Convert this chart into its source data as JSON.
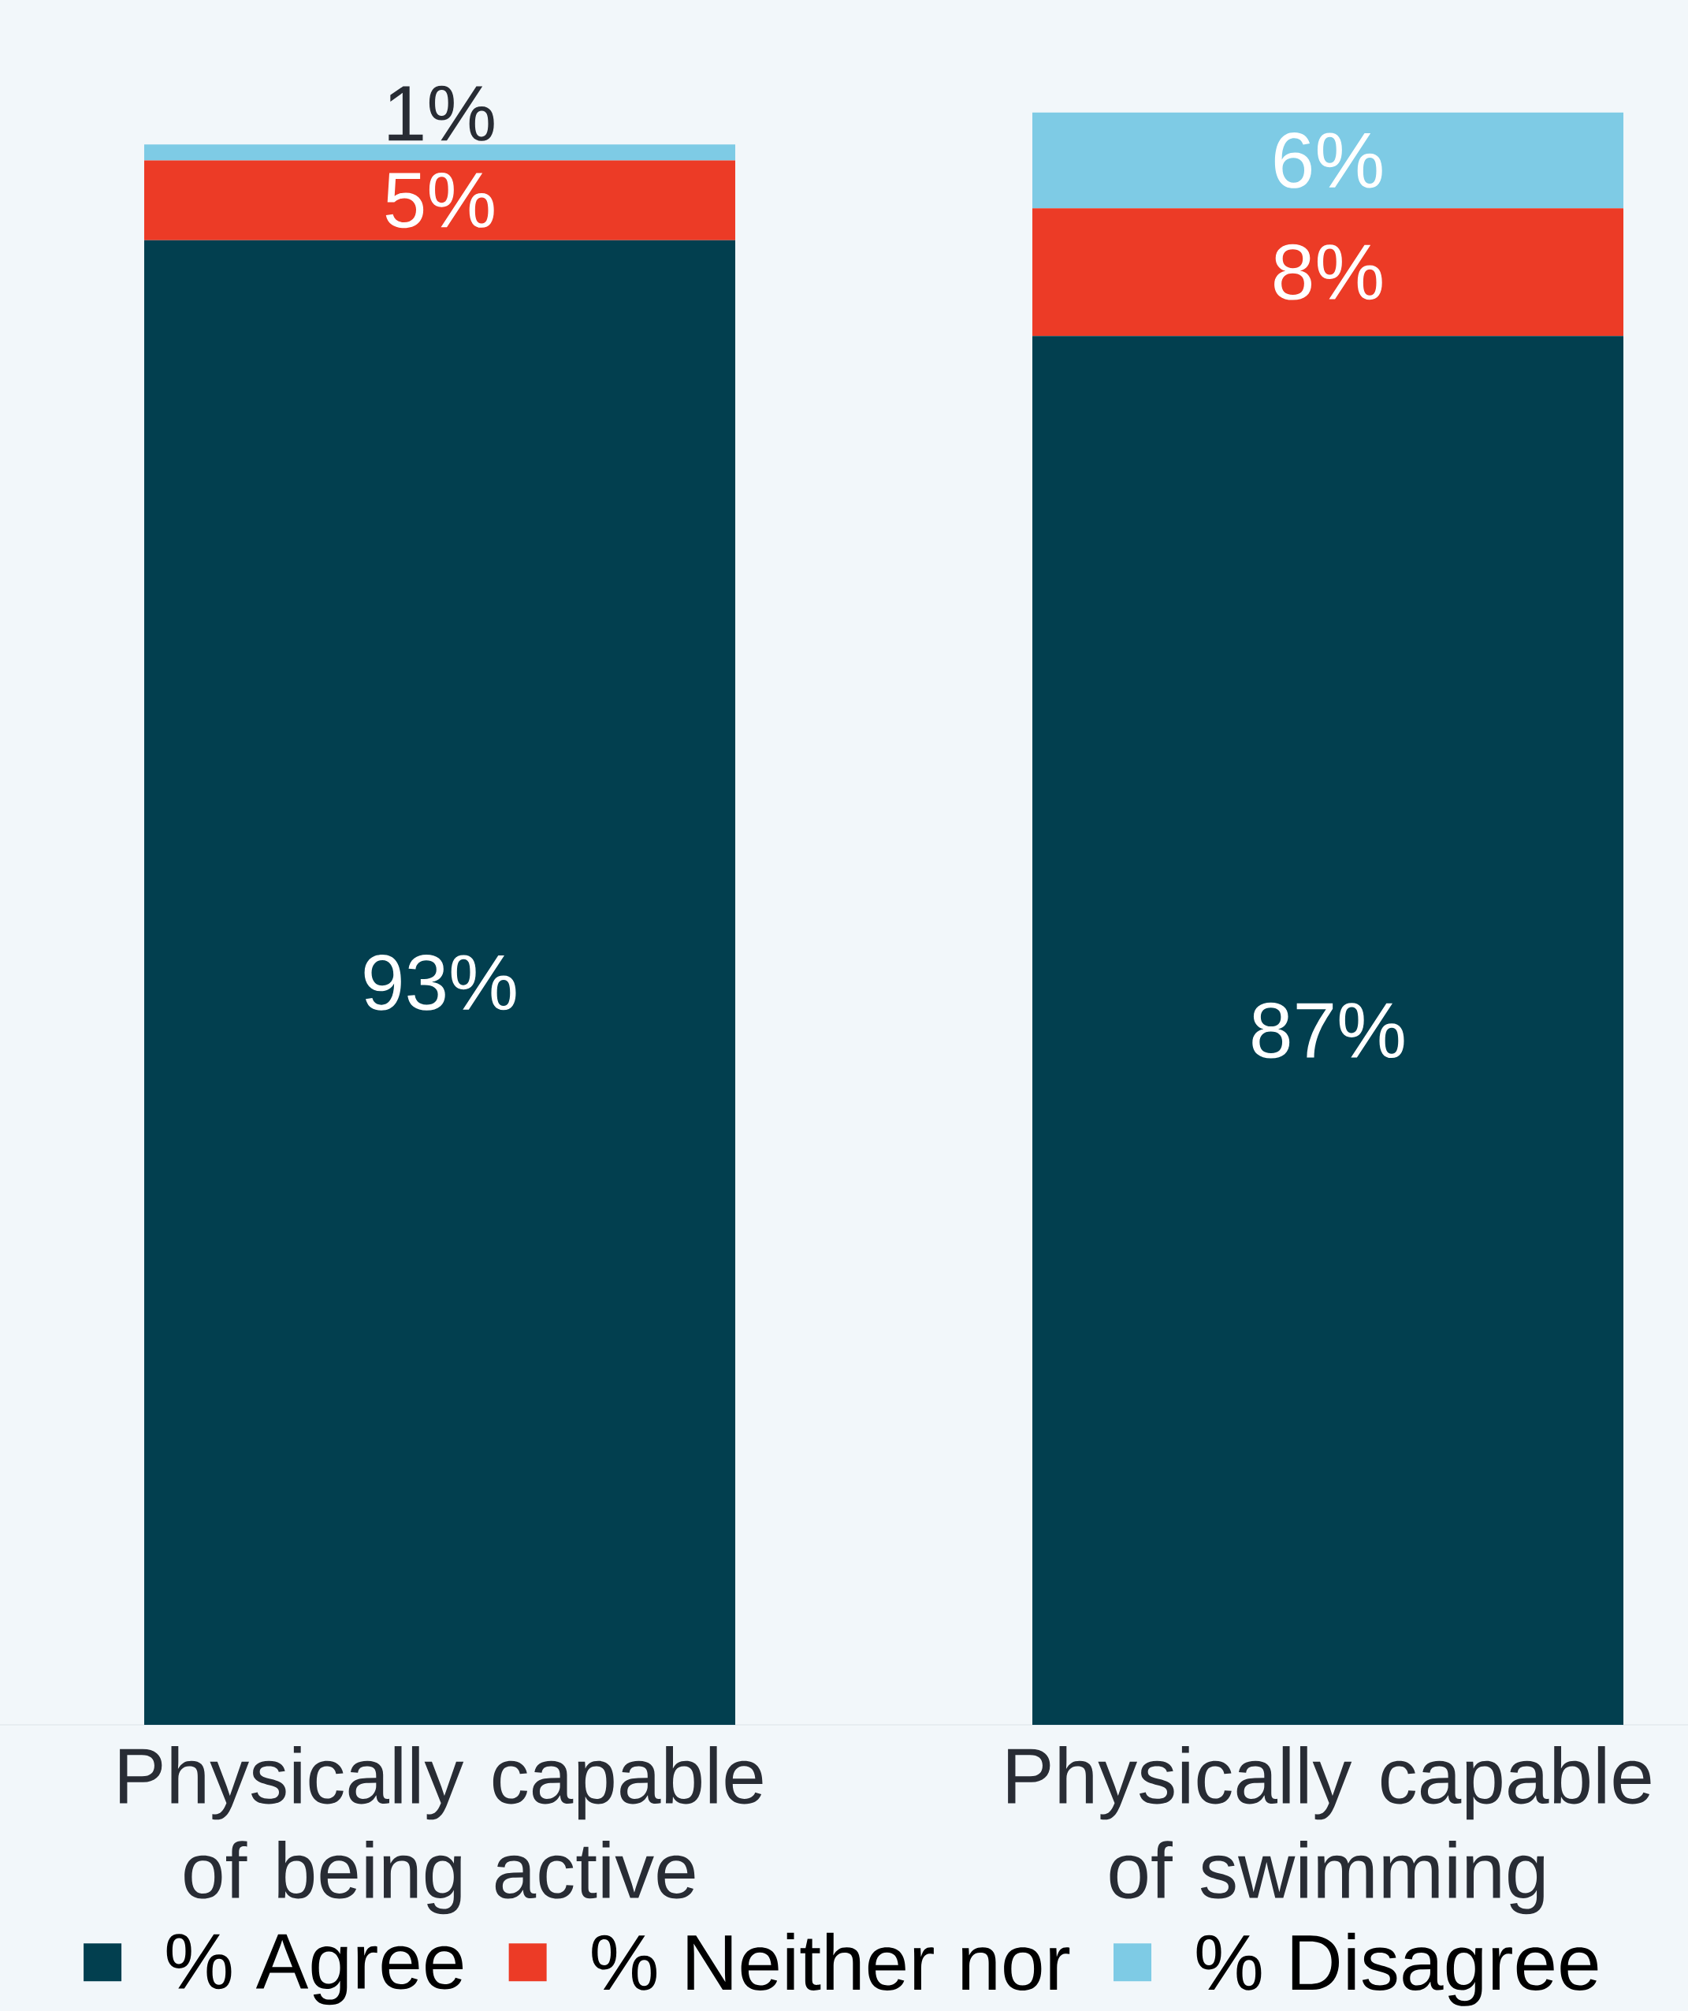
{
  "chart_data": {
    "type": "bar",
    "stacked": true,
    "categories": [
      "Physically capable of being active",
      "Physically capable of swimming"
    ],
    "series": [
      {
        "name": "% Agree",
        "color": "#023f4f",
        "values": [
          93,
          87
        ],
        "value_labels": [
          "93%",
          "87%"
        ]
      },
      {
        "name": "% Neither nor",
        "color": "#ec3b26",
        "values": [
          5,
          8
        ],
        "value_labels": [
          "5%",
          "8%"
        ]
      },
      {
        "name": "% Disagree",
        "color": "#7ecbe5",
        "values": [
          1,
          6
        ],
        "value_labels": [
          "1%",
          "6%"
        ]
      }
    ],
    "legend": "bottom"
  }
}
